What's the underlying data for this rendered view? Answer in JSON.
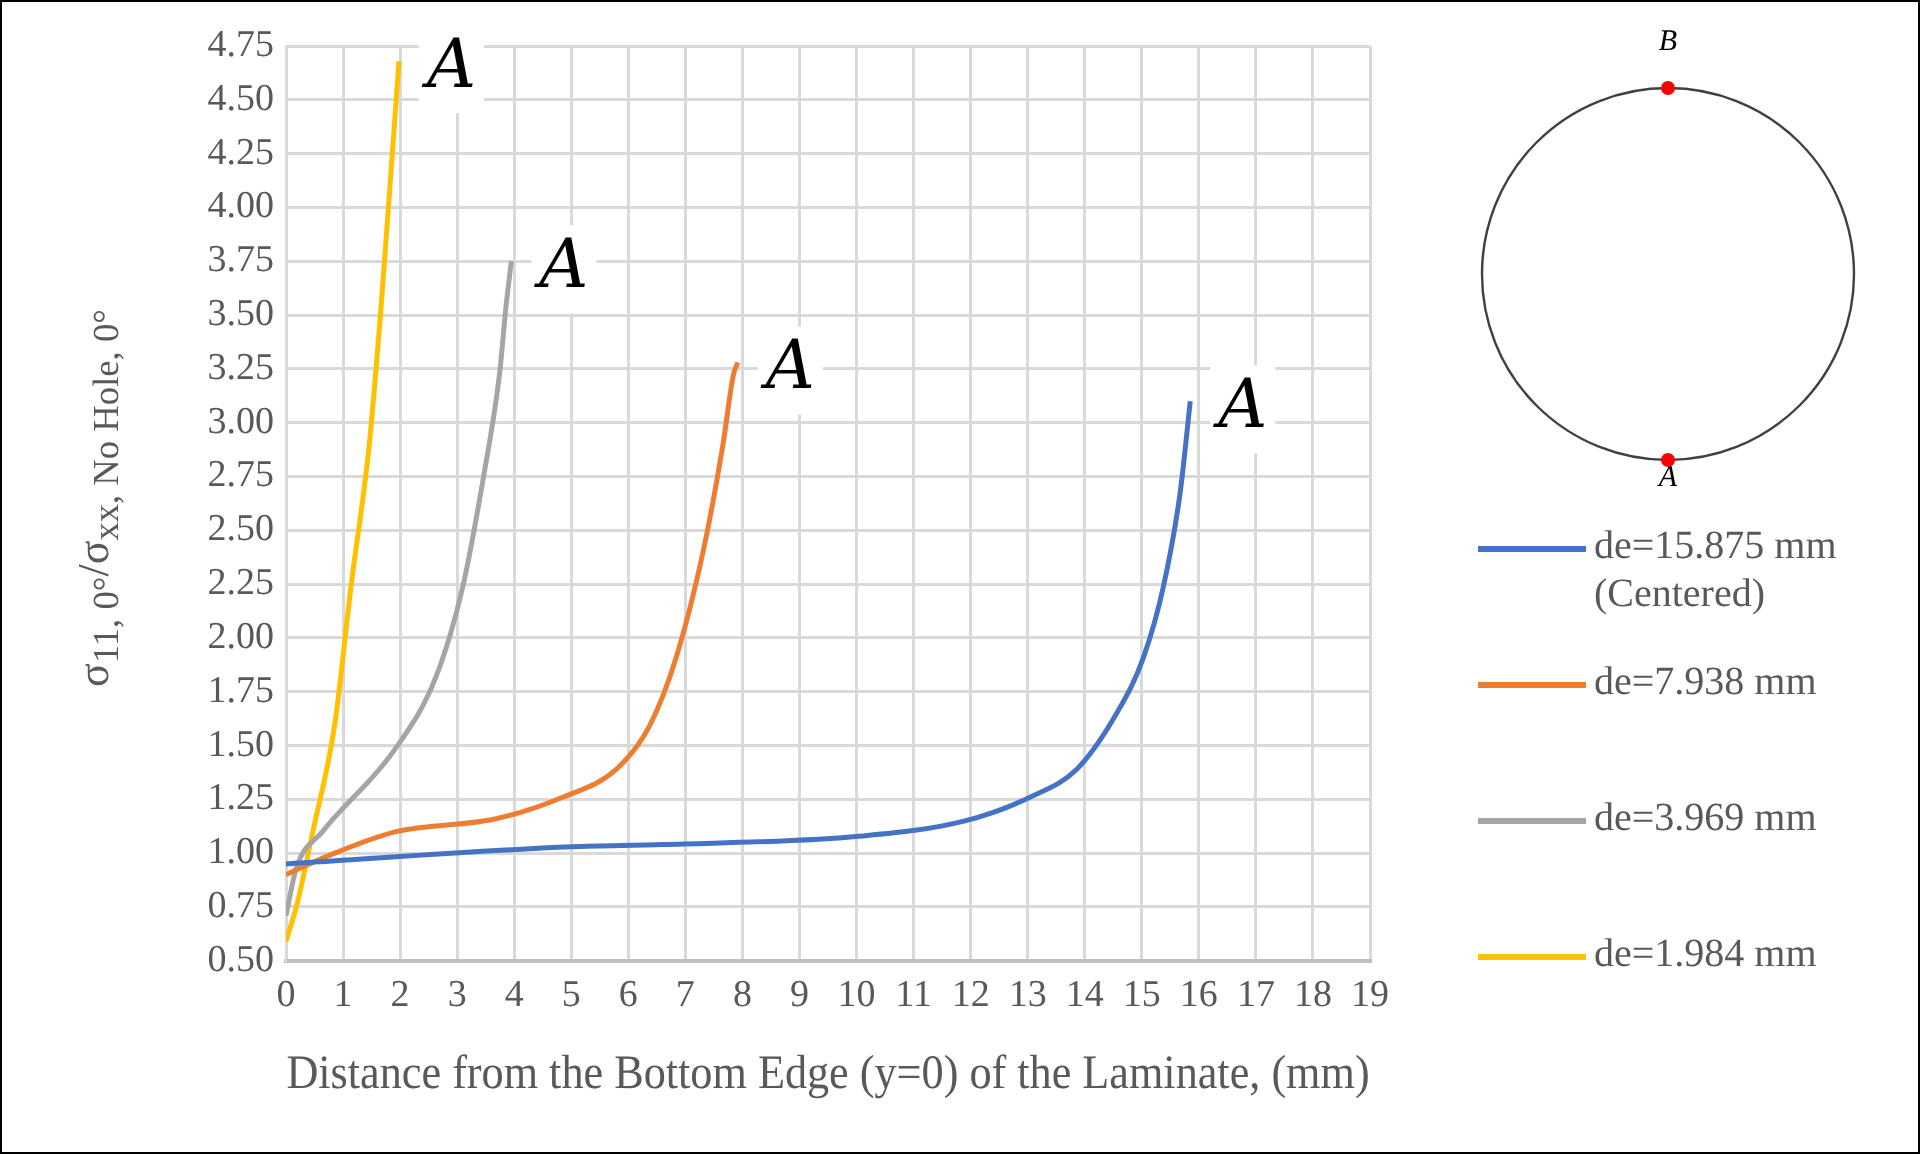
{
  "chart_data": {
    "type": "line",
    "xlabel": "Distance from the Bottom Edge (y=0) of the Laminate, (mm)",
    "ylabel": "σ$_{11, 0°}$/σ$_{xx, No Hole, 0°}$",
    "xlim": [
      0,
      19
    ],
    "xticks": [
      0,
      1,
      2,
      3,
      4,
      5,
      6,
      7,
      8,
      9,
      10,
      11,
      12,
      13,
      14,
      15,
      16,
      17,
      18,
      19
    ],
    "ylim": [
      0.5,
      4.75
    ],
    "yticks": [
      {
        "value": 0.5,
        "label": "0.50"
      },
      {
        "value": 0.75,
        "label": "0.75"
      },
      {
        "value": 1,
        "label": "1.00"
      },
      {
        "value": 1.25,
        "label": "1.25"
      },
      {
        "value": 1.5,
        "label": "1.50"
      },
      {
        "value": 1.75,
        "label": "1.75"
      },
      {
        "value": 2,
        "label": "2.00"
      },
      {
        "value": 2.25,
        "label": "2.25"
      },
      {
        "value": 2.5,
        "label": "2.50"
      },
      {
        "value": 2.75,
        "label": "2.75"
      },
      {
        "value": 3,
        "label": "3.00"
      },
      {
        "value": 3.25,
        "label": "3.25"
      },
      {
        "value": 3.5,
        "label": "3.50"
      },
      {
        "value": 3.75,
        "label": "3.75"
      },
      {
        "value": 4,
        "label": "4.00"
      },
      {
        "value": 4.25,
        "label": "4.25"
      },
      {
        "value": 4.5,
        "label": "4.50"
      },
      {
        "value": 4.75,
        "label": "4.75"
      }
    ],
    "grid": true,
    "legend": "right",
    "marker": "none",
    "line_style": "solid",
    "series": [
      {
        "name": "de=15.875 mm (Centered)",
        "color": "#4472c4",
        "x": [
          0,
          5,
          6.6,
          10.1,
          11.9,
          13.04,
          13.86,
          14.56,
          15.03,
          15.38,
          15.67,
          15.85
        ],
        "values": [
          0.95,
          1.03,
          1.04,
          1.08,
          1.15,
          1.26,
          1.39,
          1.65,
          1.91,
          2.24,
          2.67,
          3.1
        ]
      },
      {
        "name": "de=7.938 mm",
        "color": "#ed7d31",
        "x": [
          0,
          0.76,
          1.93,
          3.68,
          4.85,
          5.79,
          6.37,
          6.84,
          7.31,
          7.66,
          7.84,
          7.92
        ],
        "values": [
          0.9,
          0.99,
          1.1,
          1.16,
          1.26,
          1.39,
          1.59,
          1.91,
          2.4,
          2.9,
          3.22,
          3.28
        ]
      },
      {
        "name": "de=3.969 mm",
        "color": "#a5a5a5",
        "x": [
          0,
          0.18,
          0.64,
          1.93,
          2.63,
          3.1,
          3.45,
          3.74,
          3.86,
          3.95
        ],
        "values": [
          0.71,
          0.93,
          1.1,
          1.49,
          1.82,
          2.24,
          2.73,
          3.22,
          3.55,
          3.75
        ]
      },
      {
        "name": "de=1.984 mm",
        "color": "#ffc000",
        "x": [
          0,
          0.2,
          0.47,
          0.85,
          1.14,
          1.46,
          1.67,
          1.85,
          1.98
        ],
        "values": [
          0.59,
          0.77,
          1.1,
          1.59,
          2.24,
          2.9,
          3.55,
          4.2,
          4.68
        ]
      }
    ],
    "annotations": [
      {
        "text": "A",
        "x": 15.85,
        "y": 3.1
      },
      {
        "text": "A",
        "x": 7.92,
        "y": 3.28
      },
      {
        "text": "A",
        "x": 3.95,
        "y": 3.75
      },
      {
        "text": "A",
        "x": 1.98,
        "y": 4.68
      },
      "B",
      "A"
    ]
  }
}
